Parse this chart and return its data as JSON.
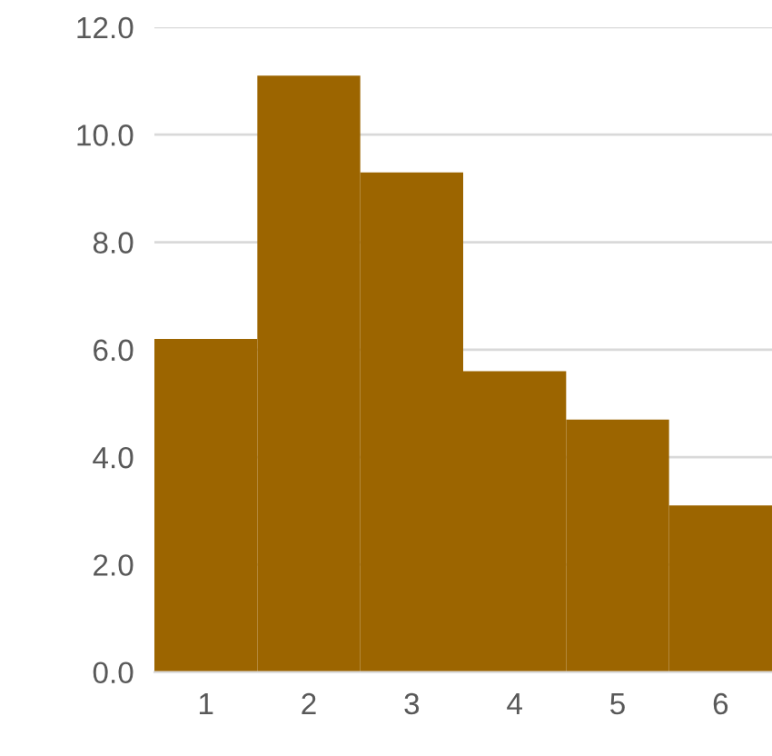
{
  "chart_data": {
    "type": "bar",
    "categories": [
      "1",
      "2",
      "3",
      "4",
      "5",
      "6"
    ],
    "values": [
      6.2,
      11.1,
      9.3,
      5.6,
      4.7,
      3.1
    ],
    "color": "#9c6500",
    "ylim": [
      0,
      12
    ],
    "yticks": [
      {
        "value": 0,
        "label": "0.0"
      },
      {
        "value": 2,
        "label": "2.0"
      },
      {
        "value": 4,
        "label": "4.0"
      },
      {
        "value": 6,
        "label": "6.0"
      },
      {
        "value": 8,
        "label": "8.0"
      },
      {
        "value": 10,
        "label": "10.0"
      },
      {
        "value": 12,
        "label": "12.0"
      }
    ],
    "grid": "y",
    "legend": false
  }
}
